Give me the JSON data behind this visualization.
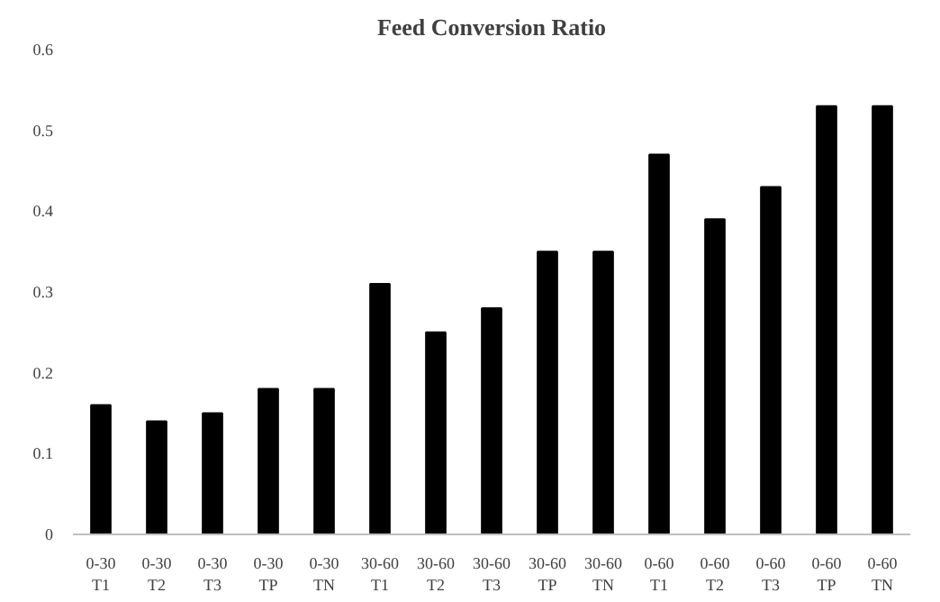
{
  "chart_data": {
    "type": "bar",
    "title": "Feed Conversion Ratio",
    "categories": [
      "0-30\nT1",
      "0-30\nT2",
      "0-30\nT3",
      "0-30\nTP",
      "0-30\nTN",
      "30-60\nT1",
      "30-60\nT2",
      "30-60\nT3",
      "30-60\nTP",
      "30-60\nTN",
      "0-60\nT1",
      "0-60\nT2",
      "0-60\nT3",
      "0-60\nTP",
      "0-60\nTN"
    ],
    "values": [
      0.16,
      0.14,
      0.15,
      0.18,
      0.18,
      0.31,
      0.25,
      0.28,
      0.35,
      0.35,
      0.47,
      0.39,
      0.43,
      0.53,
      0.53
    ],
    "color": "#000000",
    "ylim": [
      0,
      0.6
    ],
    "yticks": [
      0,
      0.1,
      0.2,
      0.3,
      0.4,
      0.5,
      0.6
    ],
    "grid": false
  }
}
